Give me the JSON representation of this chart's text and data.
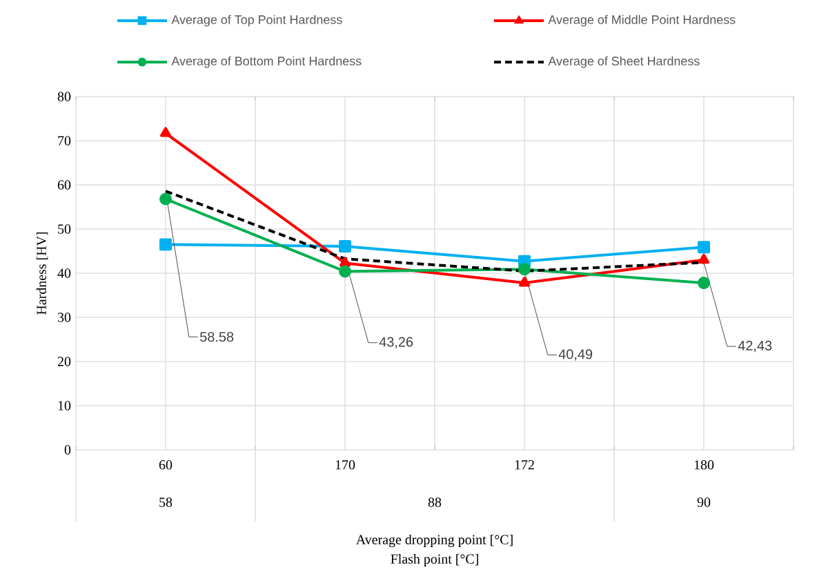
{
  "chart_data": {
    "type": "line",
    "xlabel": "Average dropping point [°C]",
    "ylabel": "Hardness [HV]",
    "categories": [
      "60",
      "170",
      "172",
      "180"
    ],
    "ylim": [
      0,
      80
    ],
    "yticks": [
      0,
      10,
      20,
      30,
      40,
      50,
      60,
      70,
      80
    ],
    "grid": true,
    "legend": "top",
    "line_style": "solid",
    "series": [
      {
        "name": "Average of Top Point Hardness",
        "color": "#00b0f0",
        "marker": "square",
        "values": [
          46.5,
          46.1,
          42.7,
          45.9
        ]
      },
      {
        "name": "Average of Middle Point  Hardness",
        "color": "#ff0000",
        "marker": "triangle",
        "values": [
          71.7,
          42.3,
          37.8,
          43.0
        ]
      },
      {
        "name": "Average of Bottom Point Hardness",
        "color": "#00b050",
        "marker": "circle",
        "values": [
          56.8,
          40.4,
          40.9,
          37.8
        ]
      },
      {
        "name": "Average of Sheet Hardness",
        "color": "#000000",
        "marker": "none",
        "line_style": "dashed",
        "values": [
          58.58,
          43.26,
          40.49,
          42.43
        ],
        "value_labels": [
          "58.58",
          "43,26",
          "40,49",
          "42,43"
        ]
      }
    ],
    "annotations": [
      "58",
      "88",
      "90",
      "Flash point [°C]"
    ]
  }
}
